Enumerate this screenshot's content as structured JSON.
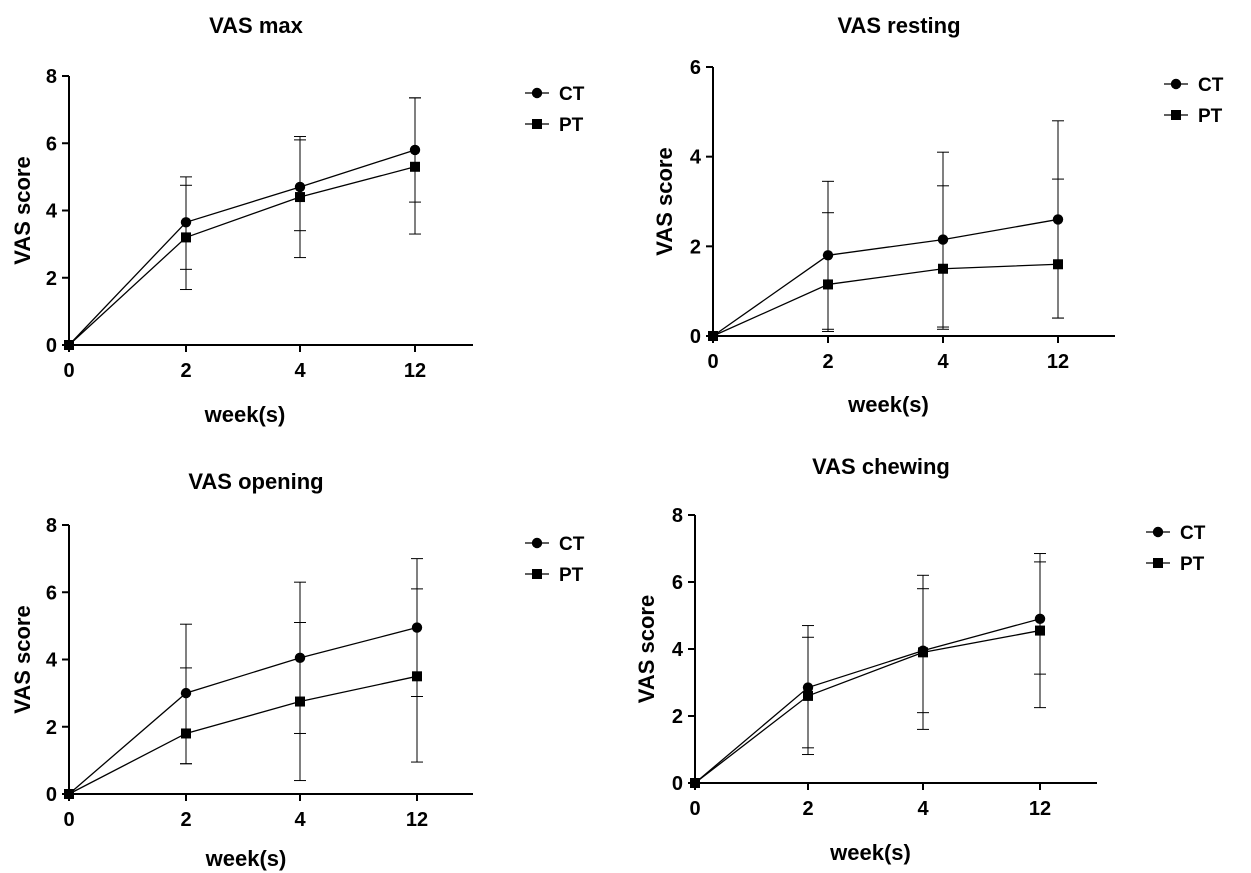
{
  "chart_data": [
    {
      "type": "line",
      "title": "VAS max",
      "xlabel": "week(s)",
      "ylabel": "VAS score",
      "categories": [
        "0",
        "2",
        "4",
        "12"
      ],
      "ylim": [
        0,
        8
      ],
      "yticks": [
        0,
        2,
        4,
        6,
        8
      ],
      "legend_position": "top-right",
      "series": [
        {
          "name": "CT",
          "marker": "circle",
          "values": [
            0,
            3.65,
            4.7,
            5.8
          ],
          "err_upper": [
            0,
            5.0,
            6.2,
            7.35
          ],
          "err_lower": [
            0,
            2.25,
            3.4,
            4.25
          ]
        },
        {
          "name": "PT",
          "marker": "square",
          "values": [
            0,
            3.2,
            4.4,
            5.3
          ],
          "err_upper": [
            0,
            4.75,
            6.1,
            7.35
          ],
          "err_lower": [
            0,
            1.65,
            2.6,
            3.3
          ]
        }
      ]
    },
    {
      "type": "line",
      "title": "VAS resting",
      "xlabel": "week(s)",
      "ylabel": "VAS score",
      "categories": [
        "0",
        "2",
        "4",
        "12"
      ],
      "ylim": [
        0,
        6
      ],
      "yticks": [
        0,
        2,
        4,
        6
      ],
      "legend_position": "top-right",
      "series": [
        {
          "name": "CT",
          "marker": "circle",
          "values": [
            0,
            1.8,
            2.15,
            2.6
          ],
          "err_upper": [
            0,
            3.45,
            4.1,
            4.8
          ],
          "err_lower": [
            0,
            0.15,
            0.2,
            0.4
          ]
        },
        {
          "name": "PT",
          "marker": "square",
          "values": [
            0,
            1.15,
            1.5,
            1.6
          ],
          "err_upper": [
            0,
            2.75,
            3.35,
            3.5
          ],
          "err_lower": [
            0,
            0.1,
            0.15,
            0.4
          ]
        }
      ]
    },
    {
      "type": "line",
      "title": "VAS opening",
      "xlabel": "week(s)",
      "ylabel": "VAS score",
      "categories": [
        "0",
        "2",
        "4",
        "12"
      ],
      "ylim": [
        0,
        8
      ],
      "yticks": [
        0,
        2,
        4,
        6,
        8
      ],
      "legend_position": "top-right",
      "series": [
        {
          "name": "CT",
          "marker": "circle",
          "values": [
            0,
            3.0,
            4.05,
            4.95
          ],
          "err_upper": [
            0,
            5.05,
            6.3,
            7.0
          ],
          "err_lower": [
            0,
            0.9,
            1.8,
            2.9
          ]
        },
        {
          "name": "PT",
          "marker": "square",
          "values": [
            0,
            1.8,
            2.75,
            3.5
          ],
          "err_upper": [
            0,
            3.75,
            5.1,
            6.1
          ],
          "err_lower": [
            0,
            0.9,
            0.4,
            0.95
          ]
        }
      ]
    },
    {
      "type": "line",
      "title": "VAS chewing",
      "xlabel": "week(s)",
      "ylabel": "VAS score",
      "categories": [
        "0",
        "2",
        "4",
        "12"
      ],
      "ylim": [
        0,
        8
      ],
      "yticks": [
        0,
        2,
        4,
        6,
        8
      ],
      "legend_position": "top-right",
      "series": [
        {
          "name": "CT",
          "marker": "circle",
          "values": [
            0,
            2.85,
            3.95,
            4.9
          ],
          "err_upper": [
            0,
            4.7,
            6.2,
            6.85
          ],
          "err_lower": [
            0,
            1.05,
            2.1,
            3.25
          ]
        },
        {
          "name": "PT",
          "marker": "square",
          "values": [
            0,
            2.6,
            3.9,
            4.55
          ],
          "err_upper": [
            0,
            4.35,
            5.8,
            6.6
          ],
          "err_lower": [
            0,
            0.85,
            1.6,
            2.25
          ]
        }
      ]
    }
  ]
}
